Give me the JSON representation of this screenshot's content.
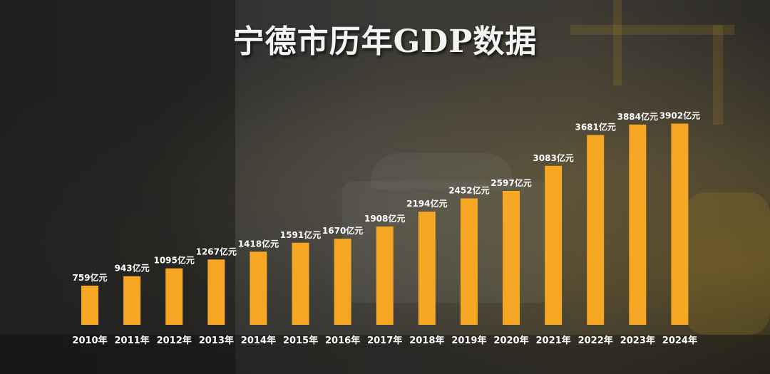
{
  "colors": {
    "bar": "#f5a623",
    "text": "#ffffff"
  },
  "chart_data": {
    "type": "bar",
    "title": "宁德市历年GDP数据",
    "xlabel": "",
    "ylabel": "",
    "ylim": [
      0,
      4300
    ],
    "grid": false,
    "legend": "none",
    "unit_suffix": "亿元",
    "categories": [
      "2010年",
      "2011年",
      "2012年",
      "2013年",
      "2014年",
      "2015年",
      "2016年",
      "2017年",
      "2018年",
      "2019年",
      "2020年",
      "2021年",
      "2022年",
      "2023年",
      "2024年"
    ],
    "values": [
      759,
      943,
      1095,
      1267,
      1418,
      1591,
      1670,
      1908,
      2194,
      2452,
      2597,
      3083,
      3681,
      3884,
      3902
    ],
    "data_labels": [
      "759亿元",
      "943亿元",
      "1095亿元",
      "1267亿元",
      "1418亿元",
      "1591亿元",
      "1670亿元",
      "1908亿元",
      "2194亿元",
      "2452亿元",
      "2597亿元",
      "3083亿元",
      "3681亿元",
      "3884亿元",
      "3902亿元"
    ]
  }
}
